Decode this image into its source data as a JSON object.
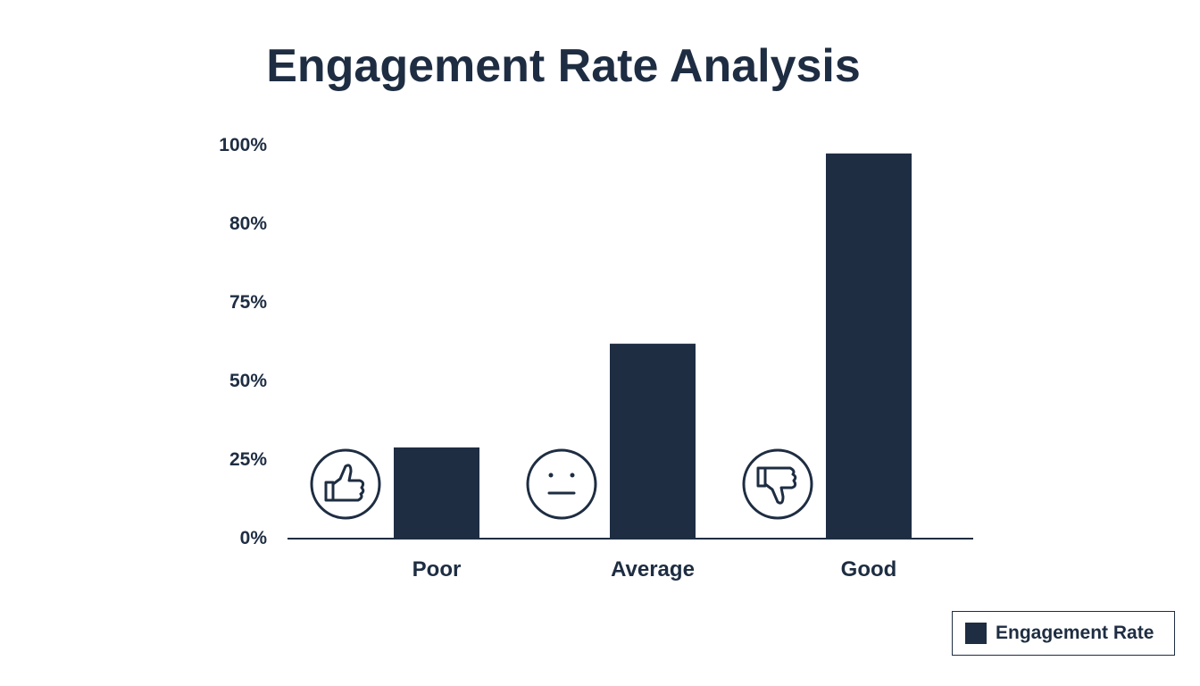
{
  "chart_data": {
    "type": "bar",
    "title": "Engagement Rate Analysis",
    "xlabel": "",
    "ylabel": "",
    "categories": [
      "Poor",
      "Average",
      "Good"
    ],
    "category_icons": [
      "thumbs-down-icon",
      "neutral-face-icon",
      "thumbs-up-icon"
    ],
    "series": [
      {
        "name": "Engagement Rate",
        "values": [
          29,
          62,
          98
        ],
        "color": "#1e2d42"
      }
    ],
    "y_ticks": [
      "0%",
      "25%",
      "50%",
      "75%",
      "80%",
      "100%"
    ],
    "y_tick_values": [
      0,
      25,
      50,
      75,
      80,
      100
    ],
    "ylim": [
      0,
      100
    ],
    "grid": false,
    "legend": "bottom-right"
  }
}
